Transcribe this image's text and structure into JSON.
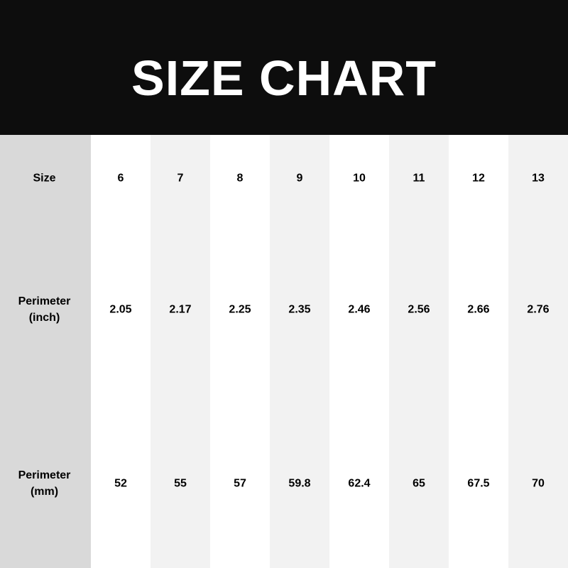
{
  "title": "SIZE CHART",
  "colors": {
    "banner": "#0d0d0d",
    "label_column": "#d9d9d9",
    "stripe_light": "#ffffff",
    "stripe_dark": "#f2f2f2"
  },
  "table": {
    "rows": [
      {
        "label": "Size",
        "values": [
          "6",
          "7",
          "8",
          "9",
          "10",
          "11",
          "12",
          "13"
        ]
      },
      {
        "label": "Perimeter\n(inch)",
        "values": [
          "2.05",
          "2.17",
          "2.25",
          "2.35",
          "2.46",
          "2.56",
          "2.66",
          "2.76"
        ]
      },
      {
        "label": "Perimeter\n(mm)",
        "values": [
          "52",
          "55",
          "57",
          "59.8",
          "62.4",
          "65",
          "67.5",
          "70"
        ]
      }
    ]
  }
}
